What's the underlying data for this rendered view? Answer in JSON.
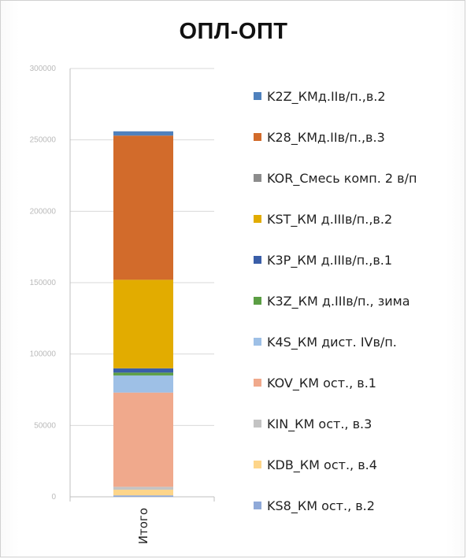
{
  "chart_data": {
    "type": "bar",
    "stacked": true,
    "title": "ОПЛ-ОПТ",
    "categories": [
      "Итого"
    ],
    "ylim": [
      0,
      300000
    ],
    "y_ticks": [
      "0",
      "50000",
      "100000",
      "150000",
      "200000",
      "250000",
      "300000"
    ],
    "gridlines": true,
    "legend_position": "right",
    "series": [
      {
        "name": "K2Z_КМд.IIв/п.,в.2",
        "color": "#4f81bd",
        "values": [
          3000
        ]
      },
      {
        "name": "K28_КМд.IIв/п.,в.3",
        "color": "#d26b2b",
        "values": [
          101000
        ]
      },
      {
        "name": "KOR_Смесь комп. 2 в/п",
        "color": "#8c8c8c",
        "values": [
          0
        ]
      },
      {
        "name": "KST_КМ д.IIIв/п.,в.2",
        "color": "#e2ac00",
        "values": [
          62000
        ]
      },
      {
        "name": "K3P_КМ д.IIIв/п.,в.1",
        "color": "#3a5ea8",
        "values": [
          3000
        ]
      },
      {
        "name": "K3Z_КМ д.IIIв/п., зима",
        "color": "#5b9e44",
        "values": [
          2000
        ]
      },
      {
        "name": "K4S_КМ дист. IVв/п.",
        "color": "#9ec0e6",
        "values": [
          12000
        ]
      },
      {
        "name": "KOV_КМ ост., в.1",
        "color": "#f0a98c",
        "values": [
          66000
        ]
      },
      {
        "name": "KIN_КМ ост., в.3",
        "color": "#c3c3c3",
        "values": [
          2000
        ]
      },
      {
        "name": "KDB_КМ ост., в.4",
        "color": "#fdd58a",
        "values": [
          4000
        ]
      },
      {
        "name": "KS8_КМ ост., в.2",
        "color": "#8fa9d8",
        "values": [
          1000
        ]
      }
    ]
  }
}
